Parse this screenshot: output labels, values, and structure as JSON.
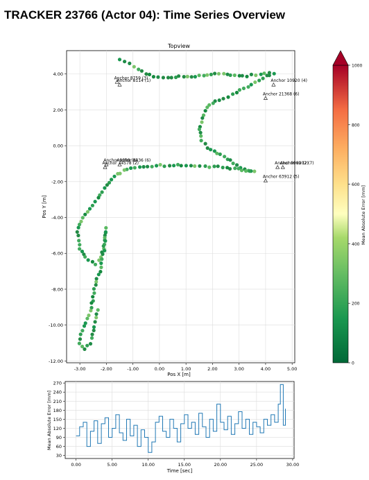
{
  "page": {
    "title": "TRACKER 23766 (Actor 04): Time Series Overview"
  },
  "chart_data": [
    {
      "type": "scatter",
      "title": "Topview",
      "xlabel": "Pos X [m]",
      "ylabel": "Pos Y [m]",
      "xlim": [
        -3.5,
        5.1
      ],
      "ylim": [
        -12.1,
        5.3
      ],
      "xticks": [
        "-3.00",
        "-2.00",
        "-1.00",
        "0.00",
        "1.00",
        "2.00",
        "3.00",
        "4.00",
        "5.00"
      ],
      "yticks": [
        "-12.00",
        "-10.00",
        "-8.00",
        "-6.00",
        "-4.00",
        "-2.00",
        "0.00",
        "2.00",
        "4.00"
      ],
      "grid": true,
      "anchors": [
        {
          "label": "Anchor 8759 (3)",
          "x": -1.6,
          "y": 3.55
        },
        {
          "label": "Anchor 8114 (1)",
          "x": -1.5,
          "y": 3.4
        },
        {
          "label": "Anchor 10920 (4)",
          "x": 4.3,
          "y": 3.4
        },
        {
          "label": "Anchor 21368 (6)",
          "x": 4.0,
          "y": 2.65
        },
        {
          "label": "Anchor 9999 (8)",
          "x": -2.0,
          "y": -1.05
        },
        {
          "label": "Anchor 8436 (6)",
          "x": -1.5,
          "y": -1.05
        },
        {
          "label": "Anchor 34578 (2)",
          "x": -2.05,
          "y": -1.2
        },
        {
          "label": "Anchor 9999 (2)",
          "x": 4.45,
          "y": -1.2
        },
        {
          "label": "Anchor 8202 (7)",
          "x": 4.65,
          "y": -1.2
        },
        {
          "label": "Anchor 63912 (5)",
          "x": 4.0,
          "y": -1.95
        }
      ],
      "path": [
        [
          -1.5,
          4.8
        ],
        [
          -1.3,
          4.7
        ],
        [
          -1.1,
          4.55
        ],
        [
          -0.8,
          4.3
        ],
        [
          -0.5,
          4.0
        ],
        [
          -0.2,
          3.85
        ],
        [
          0.3,
          3.8
        ],
        [
          0.9,
          3.85
        ],
        [
          1.5,
          3.9
        ],
        [
          2.1,
          4.0
        ],
        [
          2.7,
          3.95
        ],
        [
          3.3,
          3.9
        ],
        [
          3.8,
          4.0
        ],
        [
          4.3,
          4.05
        ],
        [
          3.9,
          3.8
        ],
        [
          3.2,
          3.2
        ],
        [
          2.6,
          2.75
        ],
        [
          2.1,
          2.5
        ],
        [
          1.8,
          2.1
        ],
        [
          1.6,
          1.5
        ],
        [
          1.5,
          0.9
        ],
        [
          1.6,
          0.3
        ],
        [
          1.8,
          -0.1
        ],
        [
          2.3,
          -0.5
        ],
        [
          2.8,
          -0.95
        ],
        [
          3.2,
          -1.3
        ],
        [
          3.6,
          -1.45
        ],
        [
          3.1,
          -1.35
        ],
        [
          2.4,
          -1.2
        ],
        [
          1.7,
          -1.15
        ],
        [
          1.0,
          -1.1
        ],
        [
          0.2,
          -1.1
        ],
        [
          -0.6,
          -1.15
        ],
        [
          -1.2,
          -1.3
        ],
        [
          -1.6,
          -1.6
        ],
        [
          -2.0,
          -2.2
        ],
        [
          -2.3,
          -2.9
        ],
        [
          -2.6,
          -3.5
        ],
        [
          -2.9,
          -4.0
        ],
        [
          -3.1,
          -4.8
        ],
        [
          -3.0,
          -5.7
        ],
        [
          -2.7,
          -6.4
        ],
        [
          -2.4,
          -6.6
        ],
        [
          -2.2,
          -6.2
        ],
        [
          -2.05,
          -5.5
        ],
        [
          -2.0,
          -4.6
        ],
        [
          -2.1,
          -5.8
        ],
        [
          -2.2,
          -6.8
        ],
        [
          -2.4,
          -7.6
        ],
        [
          -2.5,
          -8.4
        ],
        [
          -2.6,
          -9.2
        ],
        [
          -2.8,
          -9.9
        ],
        [
          -2.95,
          -10.5
        ],
        [
          -3.0,
          -11.0
        ],
        [
          -2.8,
          -11.3
        ],
        [
          -2.6,
          -11.0
        ],
        [
          -2.5,
          -10.3
        ],
        [
          -2.4,
          -9.6
        ],
        [
          -2.3,
          -9.0
        ]
      ],
      "colorbar": {
        "label": "Mean Absolute Error [mm]",
        "min": 0,
        "max": 1000,
        "ticks": [
          "0",
          "200",
          "400",
          "600",
          "800",
          "1000"
        ]
      }
    },
    {
      "type": "line",
      "xlabel": "Time [sec]",
      "ylabel": "Mean Absolute Error [mm]",
      "xlim": [
        -1.5,
        30.2
      ],
      "ylim": [
        20,
        275
      ],
      "xticks": [
        "0.00",
        "5.00",
        "10.00",
        "15.00",
        "20.00",
        "25.00",
        "30.00"
      ],
      "yticks": [
        "30",
        "60",
        "90",
        "120",
        "150",
        "180",
        "210",
        "240",
        "270"
      ],
      "grid": true,
      "x": [
        0,
        0.5,
        1,
        1.5,
        2,
        2.5,
        3,
        3.5,
        4,
        4.5,
        5,
        5.5,
        6,
        6.5,
        7,
        7.5,
        8,
        8.5,
        9,
        9.5,
        10,
        10.5,
        11,
        11.5,
        12,
        12.5,
        13,
        13.5,
        14,
        14.5,
        15,
        15.5,
        16,
        16.5,
        17,
        17.5,
        18,
        18.5,
        19,
        19.5,
        20,
        20.5,
        21,
        21.5,
        22,
        22.5,
        23,
        23.5,
        24,
        24.5,
        25,
        25.5,
        26,
        26.5,
        27,
        27.5,
        28,
        28.3,
        28.7,
        29
      ],
      "values": [
        95,
        125,
        140,
        60,
        110,
        145,
        70,
        135,
        155,
        90,
        120,
        165,
        105,
        80,
        150,
        95,
        130,
        60,
        115,
        90,
        40,
        75,
        140,
        160,
        110,
        90,
        150,
        120,
        75,
        135,
        165,
        120,
        140,
        100,
        170,
        125,
        90,
        150,
        110,
        200,
        140,
        115,
        160,
        100,
        135,
        175,
        120,
        150,
        100,
        140,
        125,
        105,
        150,
        130,
        165,
        140,
        200,
        265,
        130,
        185
      ]
    }
  ]
}
